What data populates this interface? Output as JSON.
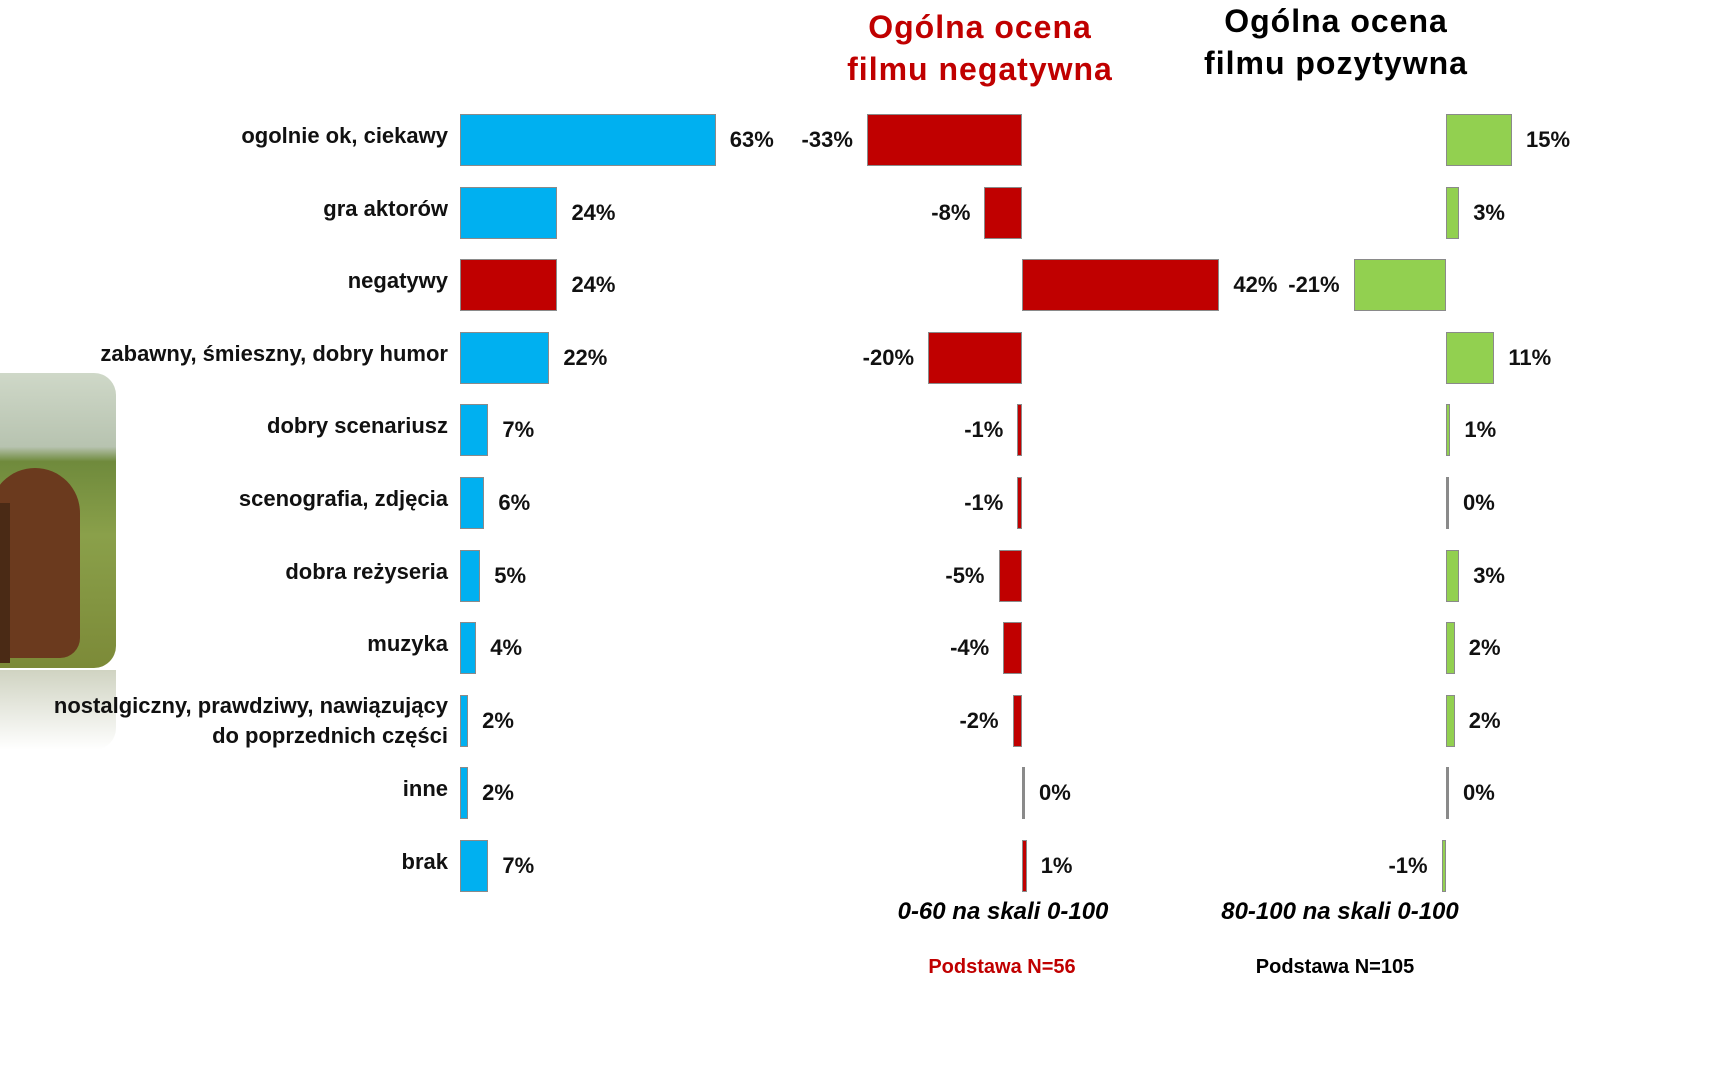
{
  "chart_data": [
    {
      "type": "bar",
      "orientation": "horizontal",
      "categories": [
        "ogolnie ok, ciekawy",
        "gra aktorów",
        "negatywy",
        "zabawny, śmieszny, dobry humor",
        "dobry scenariusz",
        "scenografia, zdjęcia",
        "dobra reżyseria",
        "muzyka",
        "nostalgiczny, prawdziwy, nawiązujący\ndo poprzednich części",
        "inne",
        "brak"
      ],
      "values": [
        63,
        24,
        24,
        22,
        7,
        6,
        5,
        4,
        2,
        2,
        7
      ],
      "value_labels": [
        "63%",
        "24%",
        "24%",
        "22%",
        "7%",
        "6%",
        "5%",
        "4%",
        "2%",
        "2%",
        "7%"
      ],
      "colors": [
        "#00b0f0",
        "#00b0f0",
        "#c00000",
        "#00b0f0",
        "#00b0f0",
        "#00b0f0",
        "#00b0f0",
        "#00b0f0",
        "#00b0f0",
        "#00b0f0",
        "#00b0f0"
      ]
    },
    {
      "type": "bar",
      "orientation": "horizontal",
      "title": "Ogólna ocena\nfilmu negatywna",
      "values": [
        -33,
        -8,
        42,
        -20,
        -1,
        -1,
        -5,
        -4,
        -2,
        0,
        1
      ],
      "value_labels": [
        "-33%",
        "-8%",
        "42%",
        "-20%",
        "-1%",
        "-1%",
        "-5%",
        "-4%",
        "-2%",
        "0%",
        "1%"
      ],
      "color": "#c00000",
      "title_color": "#c00000",
      "note": "0-60 na skali 0-100",
      "base": "Podstawa N=56"
    },
    {
      "type": "bar",
      "orientation": "horizontal",
      "title": "Ogólna ocena\nfilmu pozytywna",
      "values": [
        15,
        3,
        -21,
        11,
        1,
        0,
        3,
        2,
        2,
        0,
        -1
      ],
      "value_labels": [
        "15%",
        "3%",
        "-21%",
        "11%",
        "1%",
        "0%",
        "3%",
        "2%",
        "2%",
        "0%",
        "-1%"
      ],
      "color": "#92d050",
      "title_color": "#000000",
      "note": "80-100 na skali 0-100",
      "base": "Podstawa N=105"
    }
  ]
}
